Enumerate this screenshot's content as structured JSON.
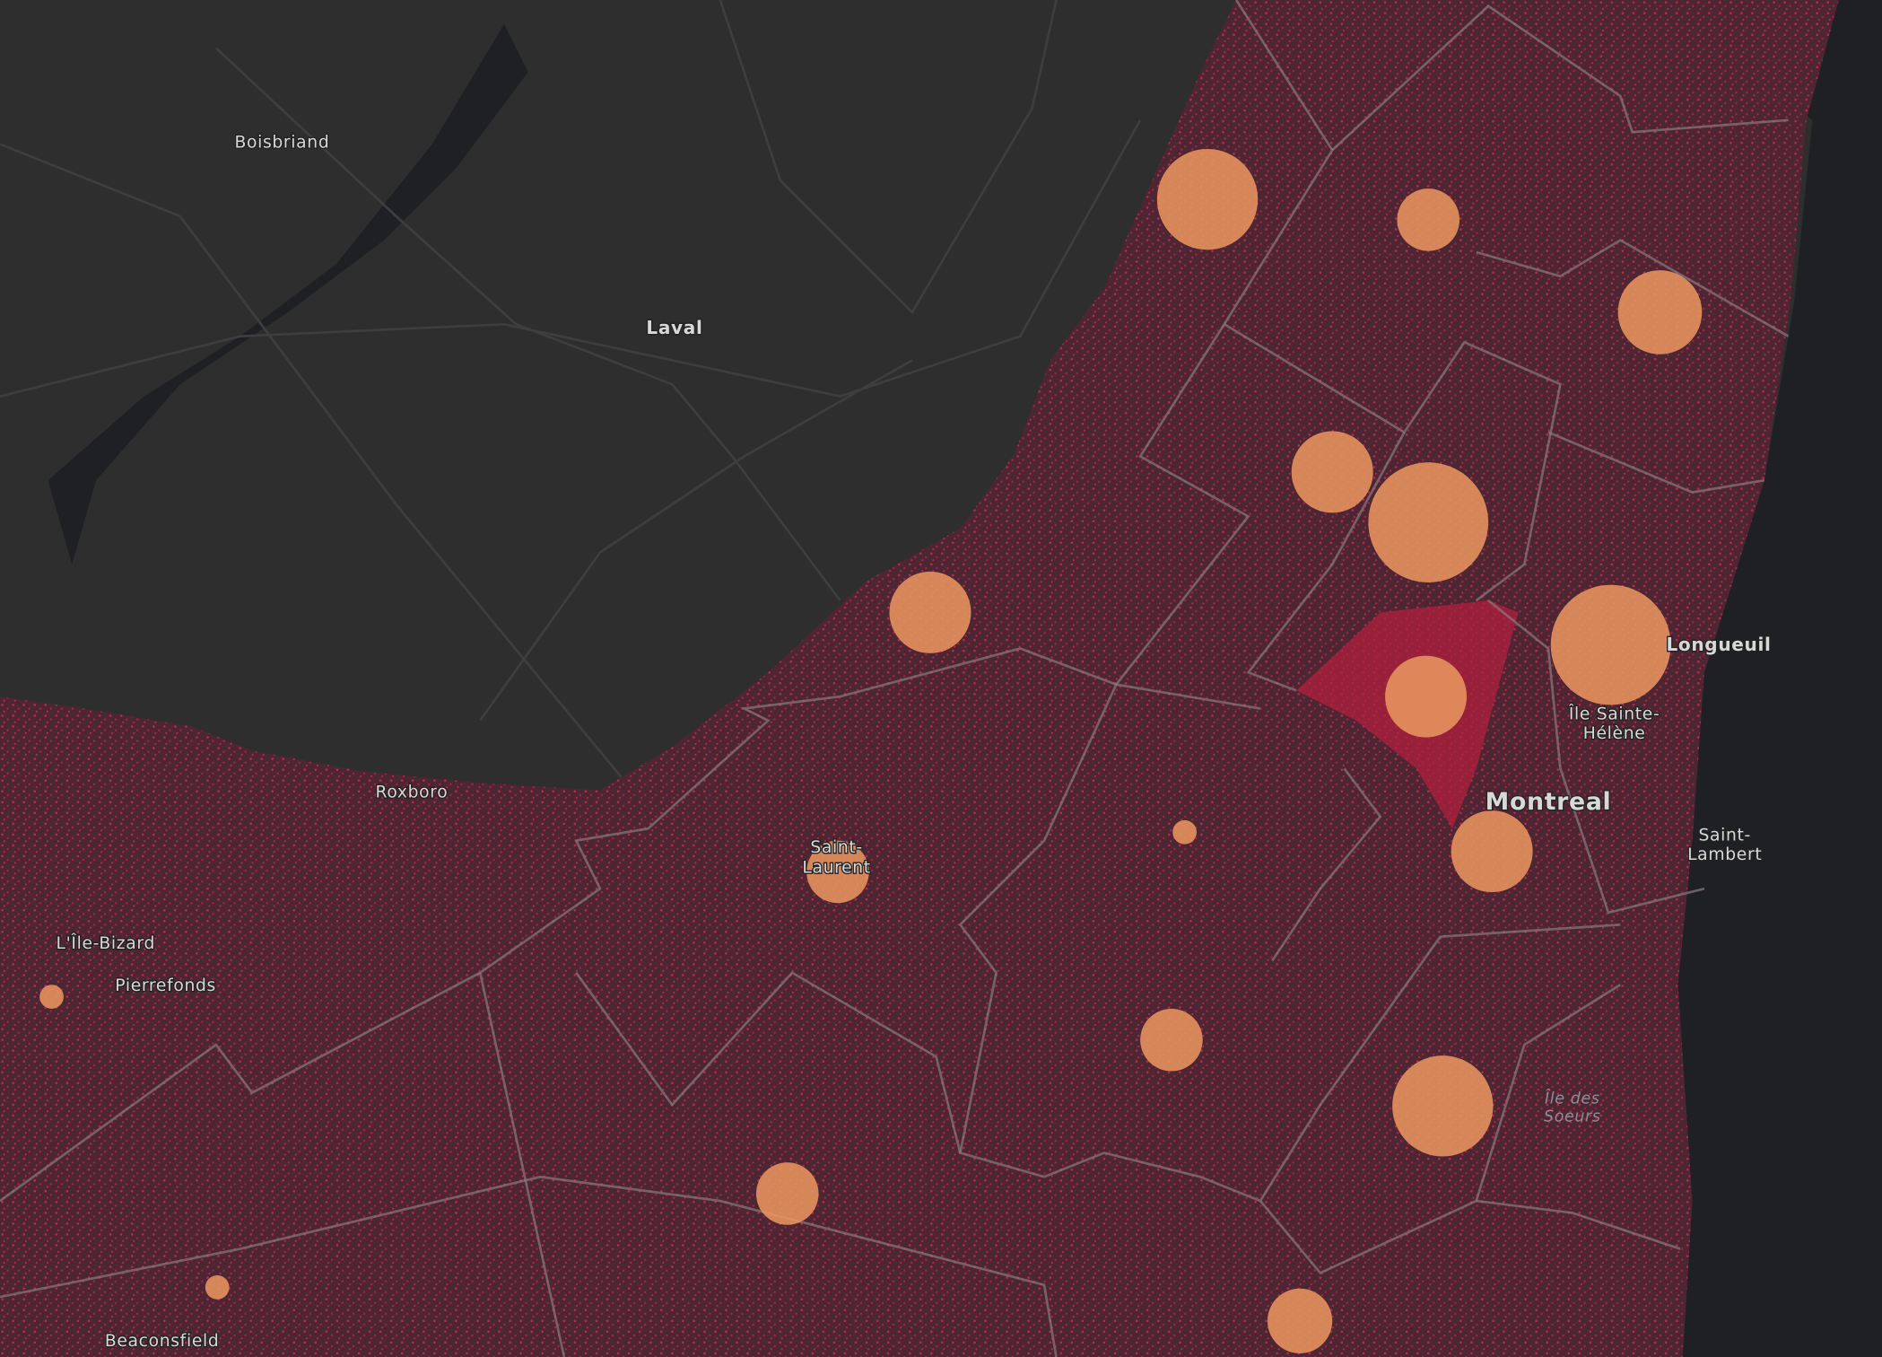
{
  "places": [
    {
      "lines": [
        "Boisbriand"
      ]
    },
    {
      "lines": [
        "Laval"
      ]
    },
    {
      "lines": [
        "Roxboro"
      ]
    },
    {
      "lines": [
        "Saint-",
        "Laurent"
      ]
    },
    {
      "lines": [
        "L'Île-Bizard"
      ]
    },
    {
      "lines": [
        "Pierrefonds"
      ]
    },
    {
      "lines": [
        "Beaconsfield"
      ]
    },
    {
      "lines": [
        "Longueuil"
      ]
    },
    {
      "lines": [
        "Île Sainte-",
        "Hélène"
      ]
    },
    {
      "lines": [
        "Montreal"
      ]
    },
    {
      "lines": [
        "Saint-",
        "Lambert"
      ]
    },
    {
      "lines": [
        "Île des",
        "Soeurs"
      ]
    }
  ]
}
